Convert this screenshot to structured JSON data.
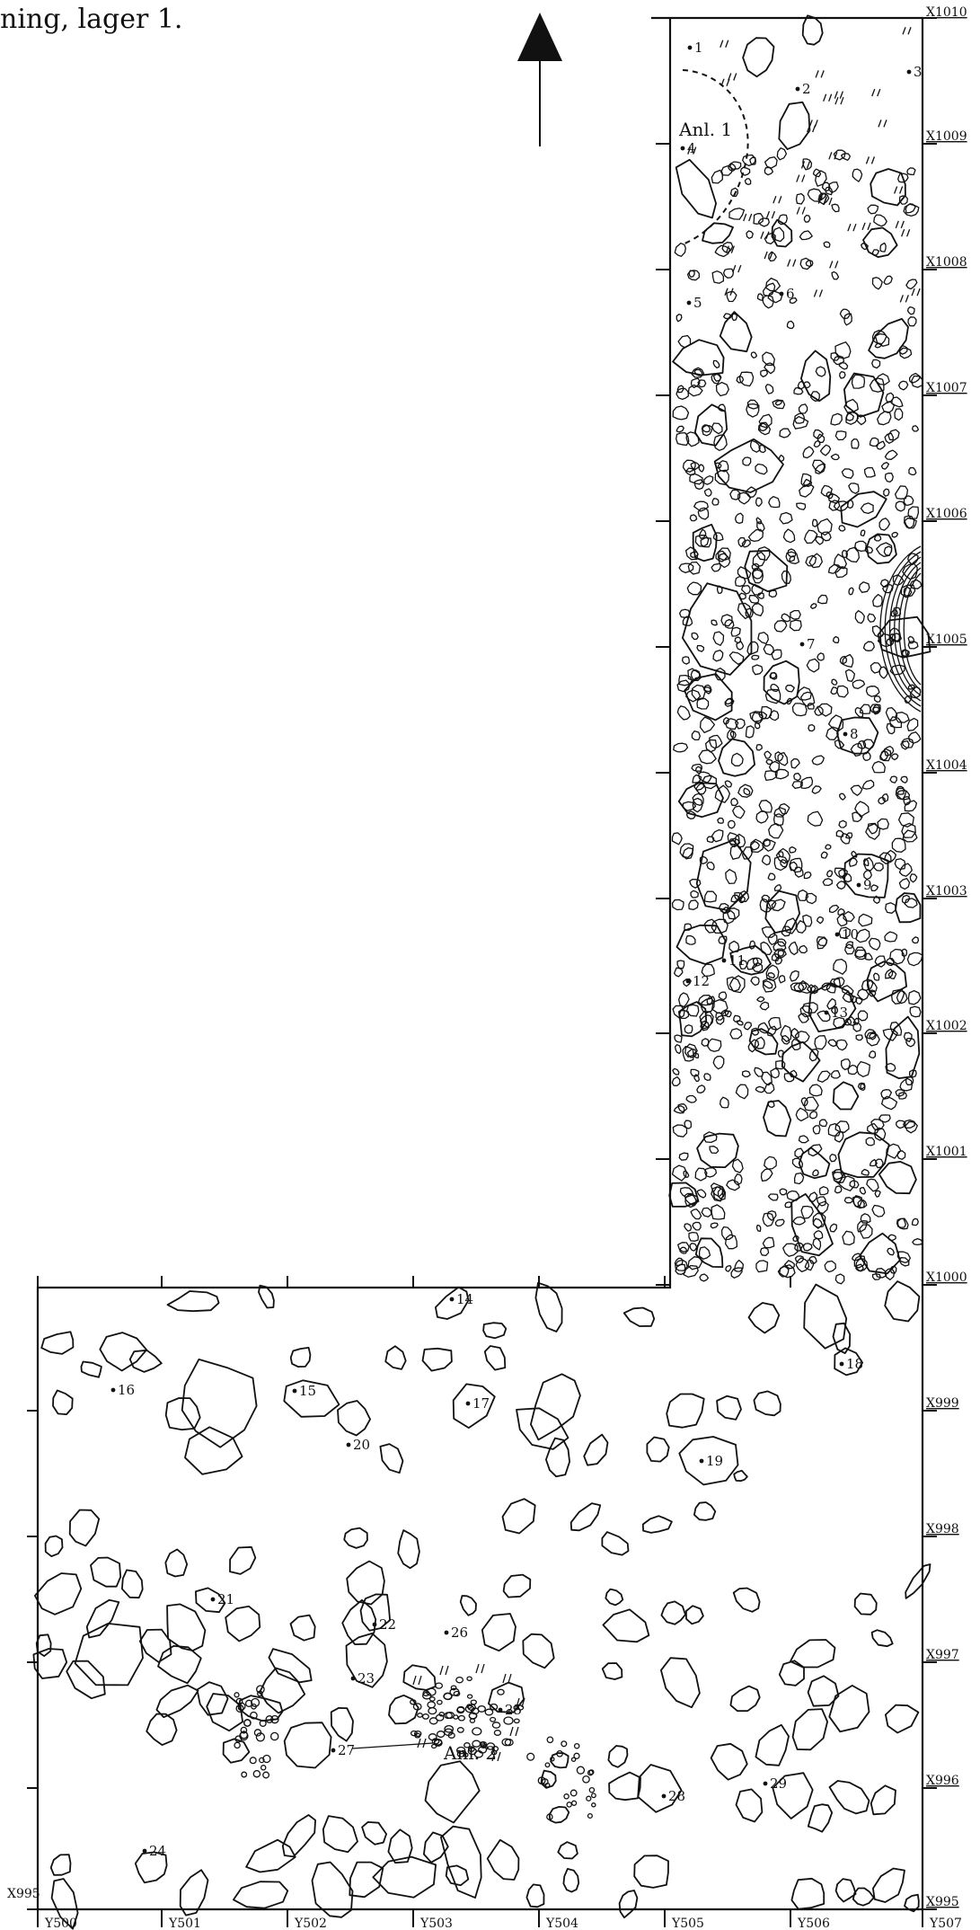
{
  "caption": "ning, lager 1.",
  "grid_x_labels": [
    "X1010",
    "X1009",
    "X1008",
    "X1007",
    "X1006",
    "X1005",
    "X1004",
    "X1003",
    "X1002",
    "X1001",
    "X1000",
    "X999",
    "X998",
    "X997",
    "X996",
    "X995"
  ],
  "grid_y_labels": [
    "Y500",
    "Y501",
    "Y502",
    "Y503",
    "Y504",
    "Y505",
    "Y506",
    "Y507"
  ],
  "corner_label": "X995",
  "features": [
    "Anl. 1",
    "Anl. 2"
  ],
  "points": [
    "1",
    "2",
    "3",
    "4",
    "5",
    "6",
    "7",
    "8",
    "9",
    "10",
    "11",
    "12",
    "13",
    "14",
    "15",
    "16",
    "17",
    "18",
    "19",
    "20",
    "21",
    "22",
    "23",
    "24",
    "25",
    "26",
    "27",
    "28",
    "29"
  ],
  "icons": {
    "north_arrow": "north-arrow-icon"
  }
}
